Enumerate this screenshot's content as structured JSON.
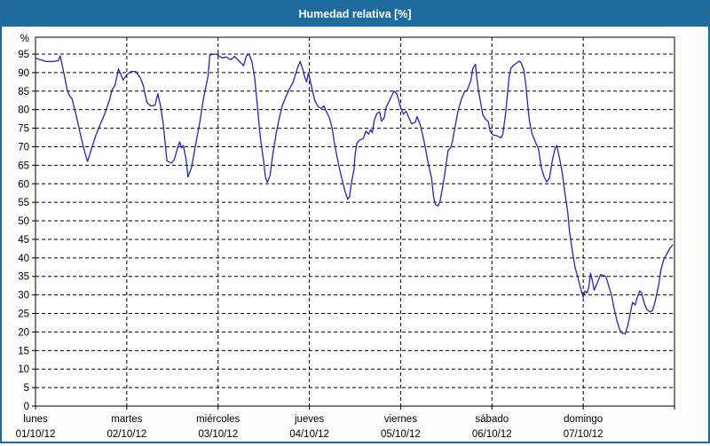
{
  "window": {
    "title": "Humedad relativa [%]"
  },
  "colors": {
    "titlebar": "#1E6C9E",
    "background": "#FDFEF9",
    "plot_background": "#FFFFFF",
    "line": "#2222CC",
    "grid": "#000000",
    "text": "#000000"
  },
  "chart_data": {
    "type": "line",
    "title": "Humedad relativa [%]",
    "ylabel": "%",
    "xlabel": "",
    "ylim": [
      0,
      100
    ],
    "y_ticks": [
      0,
      5,
      10,
      15,
      20,
      25,
      30,
      35,
      40,
      45,
      50,
      55,
      60,
      65,
      70,
      75,
      80,
      85,
      90,
      95
    ],
    "grid": "dashed",
    "legend": "none",
    "x_categories": [
      {
        "name": "lunes",
        "date": "01/10/12"
      },
      {
        "name": "martes",
        "date": "02/10/12"
      },
      {
        "name": "miércoles",
        "date": "03/10/12"
      },
      {
        "name": "jueves",
        "date": "04/10/12"
      },
      {
        "name": "viernes",
        "date": "05/10/12"
      },
      {
        "name": "sábado",
        "date": "06/10/12"
      },
      {
        "name": "domingo",
        "date": "07/10/12"
      }
    ],
    "x_unit": "days since 01/10/12 00:00",
    "series": [
      {
        "name": "Humedad relativa [%]",
        "color": "#2222CC",
        "points": [
          [
            0.0,
            94
          ],
          [
            0.05,
            93.5
          ],
          [
            0.12,
            93
          ],
          [
            0.19,
            93
          ],
          [
            0.25,
            93.2
          ],
          [
            0.27,
            94.5
          ],
          [
            0.31,
            90
          ],
          [
            0.35,
            85
          ],
          [
            0.38,
            83.5
          ],
          [
            0.4,
            83
          ],
          [
            0.45,
            78
          ],
          [
            0.5,
            72.5
          ],
          [
            0.54,
            68.5
          ],
          [
            0.57,
            66
          ],
          [
            0.62,
            70
          ],
          [
            0.66,
            73
          ],
          [
            0.71,
            76
          ],
          [
            0.76,
            79
          ],
          [
            0.81,
            82.5
          ],
          [
            0.84,
            85.5
          ],
          [
            0.87,
            86.5
          ],
          [
            0.91,
            91
          ],
          [
            0.96,
            88
          ],
          [
            1.0,
            89.5
          ],
          [
            1.05,
            90.3
          ],
          [
            1.1,
            90.3
          ],
          [
            1.15,
            88.5
          ],
          [
            1.18,
            86.5
          ],
          [
            1.22,
            82
          ],
          [
            1.26,
            81
          ],
          [
            1.31,
            81.2
          ],
          [
            1.34,
            84.3
          ],
          [
            1.37,
            81
          ],
          [
            1.4,
            76
          ],
          [
            1.44,
            66.2
          ],
          [
            1.49,
            65.6
          ],
          [
            1.52,
            66.5
          ],
          [
            1.56,
            70
          ],
          [
            1.58,
            71.3
          ],
          [
            1.6,
            69.7
          ],
          [
            1.62,
            70.3
          ],
          [
            1.65,
            66.5
          ],
          [
            1.67,
            61.8
          ],
          [
            1.71,
            64.5
          ],
          [
            1.75,
            70
          ],
          [
            1.8,
            76.5
          ],
          [
            1.84,
            83
          ],
          [
            1.89,
            89
          ],
          [
            1.91,
            94.8
          ],
          [
            1.98,
            95
          ],
          [
            2.04,
            94
          ],
          [
            2.09,
            94.2
          ],
          [
            2.14,
            93.5
          ],
          [
            2.18,
            94.4
          ],
          [
            2.23,
            93.1
          ],
          [
            2.28,
            91.9
          ],
          [
            2.31,
            94.5
          ],
          [
            2.34,
            95
          ],
          [
            2.37,
            93
          ],
          [
            2.4,
            88.7
          ],
          [
            2.43,
            81.4
          ],
          [
            2.46,
            73.2
          ],
          [
            2.5,
            66
          ],
          [
            2.52,
            61.6
          ],
          [
            2.54,
            60.4
          ],
          [
            2.57,
            62.3
          ],
          [
            2.6,
            68
          ],
          [
            2.64,
            74
          ],
          [
            2.67,
            77.6
          ],
          [
            2.7,
            80.8
          ],
          [
            2.74,
            83.3
          ],
          [
            2.78,
            85.5
          ],
          [
            2.82,
            87.3
          ],
          [
            2.85,
            89.7
          ],
          [
            2.88,
            91.9
          ],
          [
            2.9,
            93
          ],
          [
            2.93,
            90.7
          ],
          [
            2.95,
            88.7
          ],
          [
            2.97,
            87.5
          ],
          [
            2.99,
            90
          ],
          [
            3.03,
            85.5
          ],
          [
            3.06,
            82.5
          ],
          [
            3.09,
            81
          ],
          [
            3.13,
            80.3
          ],
          [
            3.16,
            81
          ],
          [
            3.18,
            79.8
          ],
          [
            3.22,
            77.8
          ],
          [
            3.25,
            75
          ],
          [
            3.27,
            71.8
          ],
          [
            3.3,
            67.7
          ],
          [
            3.33,
            64.1
          ],
          [
            3.36,
            61
          ],
          [
            3.39,
            58
          ],
          [
            3.42,
            55.8
          ],
          [
            3.44,
            56.5
          ],
          [
            3.46,
            60.1
          ],
          [
            3.49,
            64
          ],
          [
            3.5,
            67.7
          ],
          [
            3.52,
            70.9
          ],
          [
            3.55,
            71.8
          ],
          [
            3.59,
            72.2
          ],
          [
            3.62,
            74.2
          ],
          [
            3.65,
            73.4
          ],
          [
            3.67,
            74.6
          ],
          [
            3.69,
            73.8
          ],
          [
            3.71,
            77
          ],
          [
            3.74,
            79
          ],
          [
            3.77,
            79.4
          ],
          [
            3.79,
            76.9
          ],
          [
            3.82,
            77.8
          ],
          [
            3.84,
            80.6
          ],
          [
            3.88,
            82.6
          ],
          [
            3.91,
            84.2
          ],
          [
            3.93,
            85
          ],
          [
            3.96,
            84.2
          ],
          [
            4.0,
            80.6
          ],
          [
            4.03,
            78.8
          ],
          [
            4.06,
            79.6
          ],
          [
            4.09,
            77.8
          ],
          [
            4.12,
            76.2
          ],
          [
            4.16,
            76.6
          ],
          [
            4.18,
            78.1
          ],
          [
            4.21,
            76.3
          ],
          [
            4.24,
            73.4
          ],
          [
            4.27,
            69.8
          ],
          [
            4.3,
            65.7
          ],
          [
            4.34,
            61.3
          ],
          [
            4.36,
            56.5
          ],
          [
            4.38,
            54.4
          ],
          [
            4.41,
            54
          ],
          [
            4.43,
            55.2
          ],
          [
            4.46,
            59
          ],
          [
            4.48,
            62.1
          ],
          [
            4.5,
            65.7
          ],
          [
            4.52,
            69
          ],
          [
            4.55,
            69.8
          ],
          [
            4.57,
            71.8
          ],
          [
            4.6,
            75.8
          ],
          [
            4.63,
            79.8
          ],
          [
            4.67,
            83.1
          ],
          [
            4.7,
            84.8
          ],
          [
            4.73,
            85.3
          ],
          [
            4.77,
            87.9
          ],
          [
            4.79,
            91.1
          ],
          [
            4.82,
            92.3
          ],
          [
            4.83,
            89.5
          ],
          [
            4.85,
            85.5
          ],
          [
            4.88,
            81.4
          ],
          [
            4.9,
            78.6
          ],
          [
            4.93,
            77.4
          ],
          [
            4.96,
            76.8
          ],
          [
            4.98,
            74.2
          ],
          [
            5.01,
            73.2
          ],
          [
            5.05,
            73
          ],
          [
            5.1,
            72.4
          ],
          [
            5.12,
            73.4
          ],
          [
            5.15,
            79
          ],
          [
            5.17,
            84.2
          ],
          [
            5.19,
            89.1
          ],
          [
            5.21,
            91.3
          ],
          [
            5.24,
            92
          ],
          [
            5.27,
            92.6
          ],
          [
            5.3,
            93.1
          ],
          [
            5.32,
            92.6
          ],
          [
            5.35,
            90.7
          ],
          [
            5.37,
            87.1
          ],
          [
            5.39,
            81.8
          ],
          [
            5.41,
            77
          ],
          [
            5.44,
            73.5
          ],
          [
            5.48,
            71
          ],
          [
            5.51,
            69.5
          ],
          [
            5.54,
            64.5
          ],
          [
            5.57,
            62
          ],
          [
            5.6,
            60.5
          ],
          [
            5.63,
            61.5
          ],
          [
            5.66,
            66.1
          ],
          [
            5.69,
            69.5
          ],
          [
            5.71,
            70.3
          ],
          [
            5.74,
            67
          ],
          [
            5.77,
            63
          ],
          [
            5.8,
            57.3
          ],
          [
            5.83,
            52.4
          ],
          [
            5.85,
            47.2
          ],
          [
            5.88,
            42
          ],
          [
            5.91,
            37.5
          ],
          [
            5.94,
            34.8
          ],
          [
            5.97,
            31.9
          ],
          [
            6.0,
            29.4
          ],
          [
            6.02,
            31.1
          ],
          [
            6.04,
            30.5
          ],
          [
            6.06,
            31.9
          ],
          [
            6.08,
            35.9
          ],
          [
            6.1,
            33.9
          ],
          [
            6.12,
            31.3
          ],
          [
            6.14,
            32.4
          ],
          [
            6.17,
            34.2
          ],
          [
            6.19,
            35.5
          ],
          [
            6.22,
            35.3
          ],
          [
            6.25,
            34.9
          ],
          [
            6.28,
            32.4
          ],
          [
            6.31,
            30
          ],
          [
            6.34,
            26.2
          ],
          [
            6.37,
            23
          ],
          [
            6.4,
            20.6
          ],
          [
            6.43,
            19.6
          ],
          [
            6.46,
            19.5
          ],
          [
            6.49,
            21.8
          ],
          [
            6.52,
            25.5
          ],
          [
            6.54,
            28
          ],
          [
            6.57,
            27.3
          ],
          [
            6.59,
            29.2
          ],
          [
            6.62,
            31.1
          ],
          [
            6.64,
            30.5
          ],
          [
            6.67,
            27.6
          ],
          [
            6.7,
            26
          ],
          [
            6.73,
            25.4
          ],
          [
            6.76,
            25.8
          ],
          [
            6.79,
            28.4
          ],
          [
            6.83,
            33.1
          ],
          [
            6.85,
            36.7
          ],
          [
            6.88,
            39.4
          ],
          [
            6.92,
            41.3
          ],
          [
            6.95,
            42.6
          ],
          [
            6.98,
            43.5
          ]
        ]
      }
    ]
  }
}
